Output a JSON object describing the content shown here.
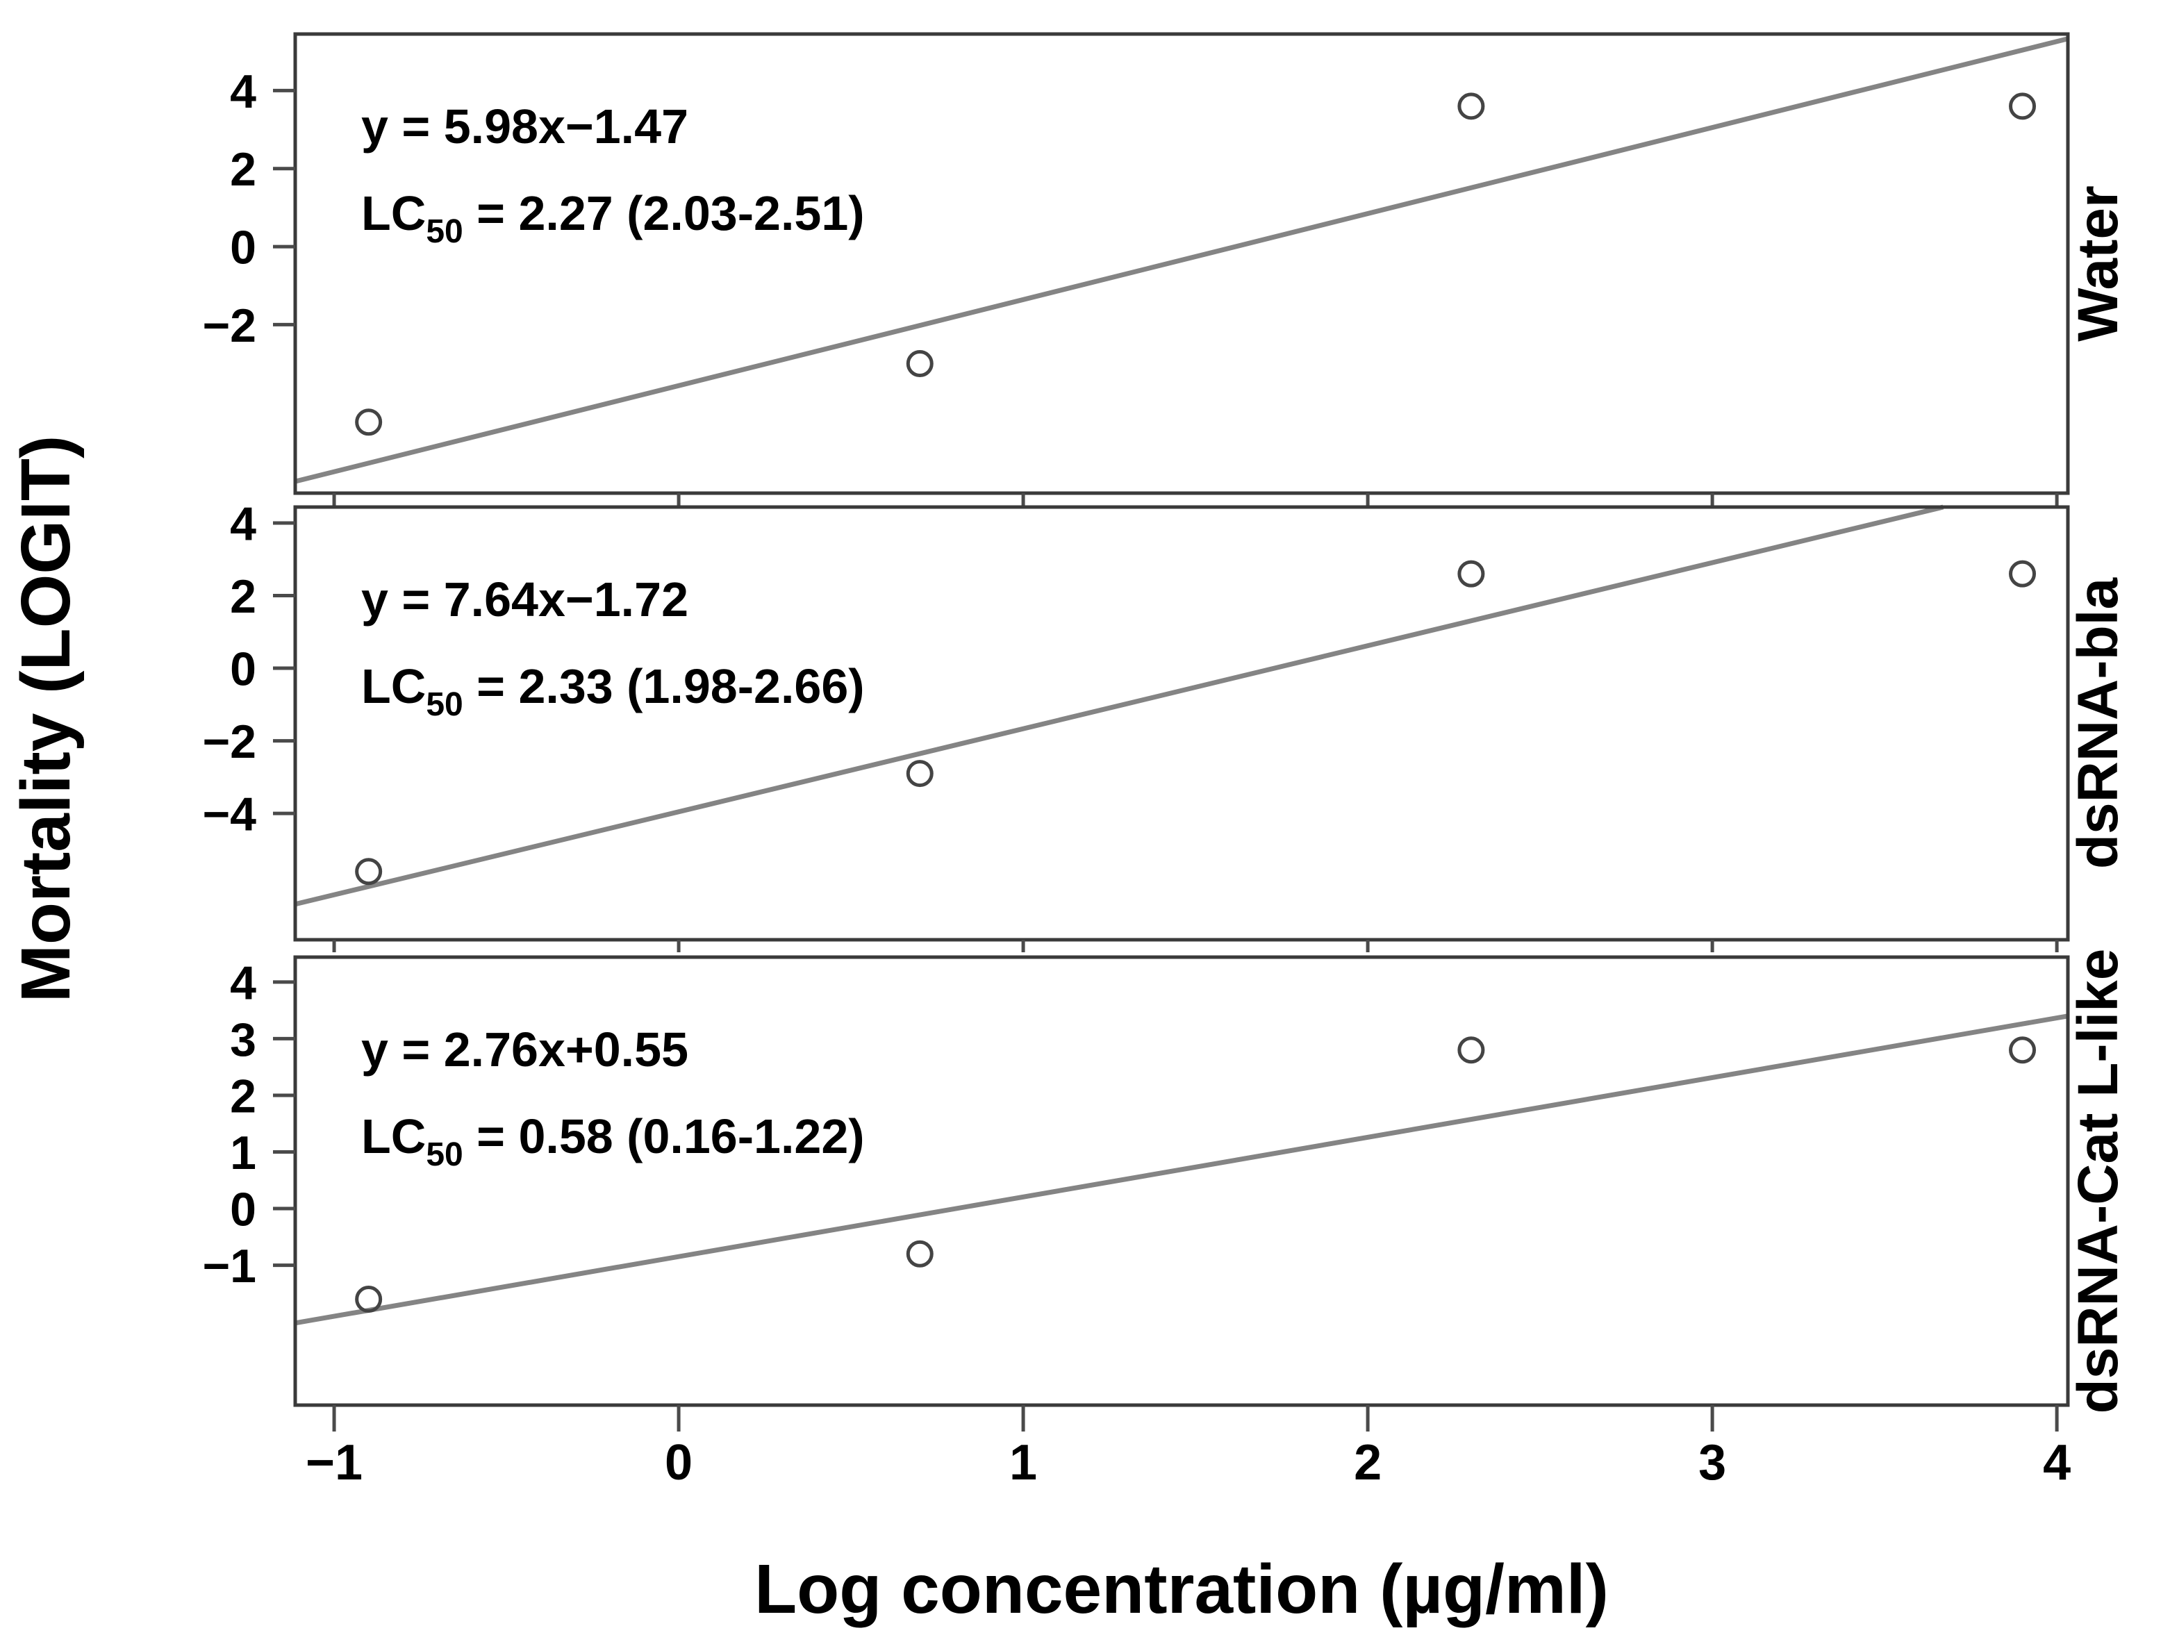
{
  "figure": {
    "background": "#ffffff",
    "border_color": "#3a3a3a",
    "tick_color": "#4a4a4a",
    "trend_color": "#848484",
    "marker_color": "#444444",
    "text_color": "#000000",
    "marker_style": "open-circle"
  },
  "chart_data": {
    "type": "scatter",
    "layout_hint": "three vertically stacked panels sharing one x axis, regression line per panel, open-circle markers, panel name on right side rotated",
    "x_label": "Log concentration (µg/ml)",
    "y_label": "Mortality (LOGIT)",
    "x_ticks": [
      -1,
      0,
      1,
      2,
      3,
      4
    ],
    "x_range": [
      -1.113,
      4.032
    ],
    "panels": [
      {
        "name": "Water",
        "equation": "y = 5.98x−1.47",
        "lc50_prefix": "LC",
        "lc50_sub": "50",
        "lc50_rest": " = 2.27 (2.03-2.51)",
        "lc50_value": "2.27",
        "lc50_ci": "2.03-2.51",
        "x": [
          -0.9,
          0.7,
          2.3,
          3.9
        ],
        "y": [
          -4.5,
          -3.0,
          3.6,
          3.6
        ],
        "yticks": [
          4,
          2,
          0,
          -2
        ],
        "ylim": [
          -6.32,
          5.45
        ],
        "trendline": {
          "x1": -1.113,
          "y1": -6.02,
          "x2": 4.032,
          "y2": 5.33
        }
      },
      {
        "name": "dsRNA-bla",
        "equation": "y = 7.64x−1.72",
        "lc50_prefix": "LC",
        "lc50_sub": "50",
        "lc50_rest": " = 2.33 (1.98-2.66)",
        "lc50_value": "2.33",
        "lc50_ci": "1.98-2.66",
        "x": [
          -0.9,
          0.7,
          2.3,
          3.9
        ],
        "y": [
          -5.6,
          -2.9,
          2.6,
          2.6
        ],
        "yticks": [
          4,
          2,
          0,
          -2,
          -4
        ],
        "ylim": [
          -7.48,
          4.44
        ],
        "trendline": {
          "x1": -1.113,
          "y1": -6.5,
          "x2": 3.67,
          "y2": 4.44
        }
      },
      {
        "name": "dsRNA-Cat L-like",
        "equation": "y = 2.76x+0.55",
        "lc50_prefix": "LC",
        "lc50_sub": "50",
        "lc50_rest": " = 0.58 (0.16-1.22)",
        "lc50_value": "0.58",
        "lc50_ci": "0.16-1.22",
        "x": [
          -0.9,
          0.7,
          2.3,
          3.9
        ],
        "y": [
          -1.6,
          -0.8,
          2.8,
          2.8
        ],
        "yticks": [
          4,
          3,
          2,
          1,
          0,
          -1
        ],
        "ylim": [
          -3.47,
          4.44
        ],
        "trendline": {
          "x1": -1.113,
          "y1": -2.02,
          "x2": 4.032,
          "y2": 3.4
        }
      }
    ]
  }
}
